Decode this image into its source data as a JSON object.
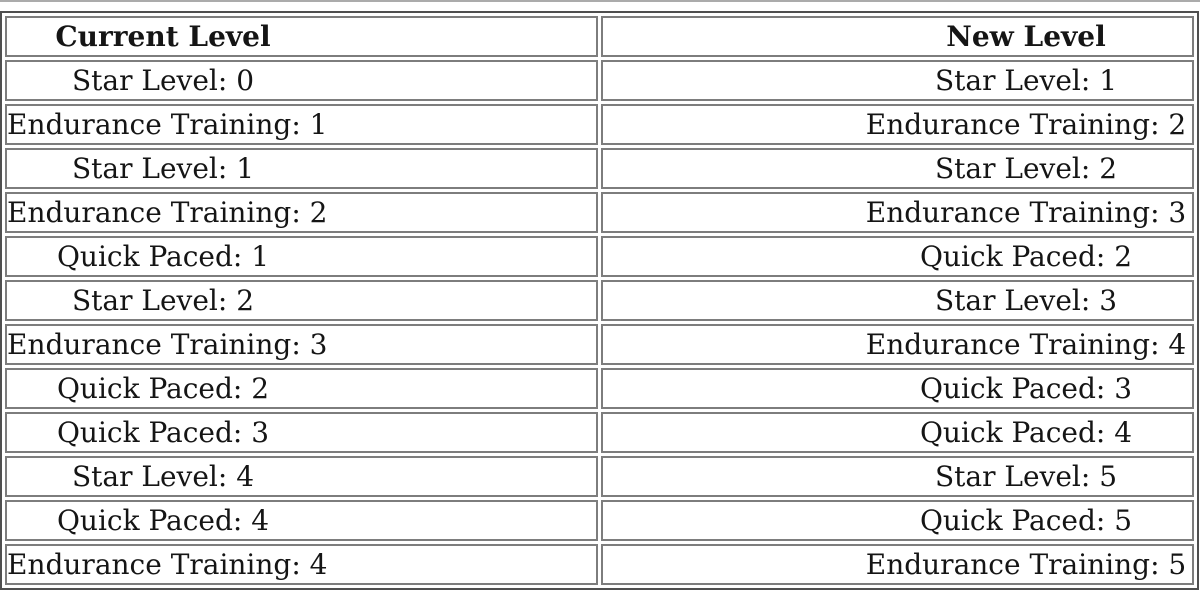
{
  "table": {
    "headers": [
      "Current Level",
      "New Level"
    ],
    "rows": [
      [
        "Star Level: 0",
        "Star Level: 1"
      ],
      [
        "Endurance Training: 1",
        "Endurance Training: 2"
      ],
      [
        "Star Level: 1",
        "Star Level: 2"
      ],
      [
        "Endurance Training: 2",
        "Endurance Training: 3"
      ],
      [
        "Quick Paced: 1",
        "Quick Paced: 2"
      ],
      [
        "Star Level: 2",
        "Star Level: 3"
      ],
      [
        "Endurance Training: 3",
        "Endurance Training: 4"
      ],
      [
        "Quick Paced: 2",
        "Quick Paced: 3"
      ],
      [
        "Quick Paced: 3",
        "Quick Paced: 4"
      ],
      [
        "Star Level: 4",
        "Star Level: 5"
      ],
      [
        "Quick Paced: 4",
        "Quick Paced: 5"
      ],
      [
        "Endurance Training: 4",
        "Endurance Training: 5"
      ]
    ]
  },
  "chart_data": {
    "type": "table",
    "columns": [
      "Current Level",
      "New Level"
    ],
    "rows": [
      [
        "Star Level: 0",
        "Star Level: 1"
      ],
      [
        "Endurance Training: 1",
        "Endurance Training: 2"
      ],
      [
        "Star Level: 1",
        "Star Level: 2"
      ],
      [
        "Endurance Training: 2",
        "Endurance Training: 3"
      ],
      [
        "Quick Paced: 1",
        "Quick Paced: 2"
      ],
      [
        "Star Level: 2",
        "Star Level: 3"
      ],
      [
        "Endurance Training: 3",
        "Endurance Training: 4"
      ],
      [
        "Quick Paced: 2",
        "Quick Paced: 3"
      ],
      [
        "Quick Paced: 3",
        "Quick Paced: 4"
      ],
      [
        "Star Level: 4",
        "Star Level: 5"
      ],
      [
        "Quick Paced: 4",
        "Quick Paced: 5"
      ],
      [
        "Endurance Training: 4",
        "Endurance Training: 5"
      ]
    ]
  },
  "colors": {
    "text": "#151515",
    "border_outer": "#4f4f4f",
    "border_inner": "#7d7d7d",
    "background": "#ffffff"
  }
}
